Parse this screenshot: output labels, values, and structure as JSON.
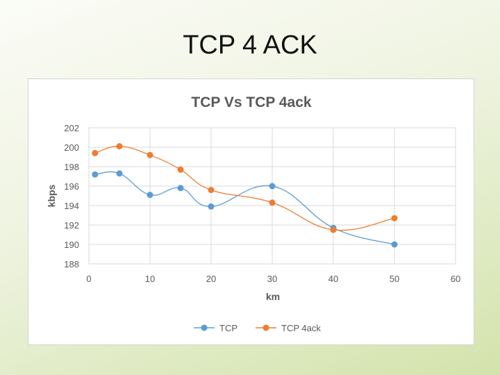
{
  "slide": {
    "title": "TCP 4 ACK"
  },
  "chart_data": {
    "type": "line",
    "title": "TCP Vs TCP 4ack",
    "xlabel": "km",
    "ylabel": "kbps",
    "xlim": [
      0,
      60
    ],
    "ylim": [
      188,
      202
    ],
    "x_ticks": [
      0,
      10,
      20,
      30,
      40,
      50,
      60
    ],
    "y_ticks": [
      188,
      190,
      192,
      194,
      196,
      198,
      200,
      202
    ],
    "grid": "on",
    "legend_position": "bottom",
    "smooth": true,
    "series": [
      {
        "name": "TCP",
        "color": "#5b9bd5",
        "x": [
          1,
          5,
          10,
          15,
          20,
          30,
          40,
          50
        ],
        "values": [
          197.2,
          197.3,
          195.1,
          195.8,
          193.9,
          196.0,
          191.7,
          190.0
        ]
      },
      {
        "name": "TCP 4ack",
        "color": "#ed7d31",
        "x": [
          1,
          5,
          10,
          15,
          20,
          30,
          40,
          50
        ],
        "values": [
          199.4,
          200.1,
          199.2,
          197.7,
          195.6,
          194.3,
          191.5,
          192.7
        ]
      }
    ]
  }
}
